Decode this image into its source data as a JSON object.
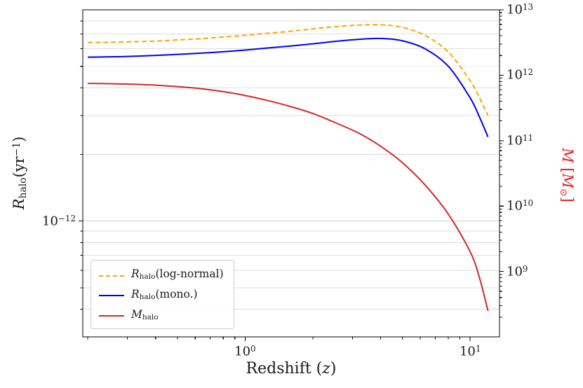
{
  "figure": {
    "background": "#ffffff",
    "text_color": "#1a1a1a"
  },
  "chart_data": {
    "type": "line",
    "title": "",
    "xlabel": "Redshift (z)",
    "xlabel_tokens": [
      {
        "t": "Redshift ("
      },
      {
        "t": "z",
        "i": true
      },
      {
        "t": ")"
      }
    ],
    "ylabel_left": "R_halo (yr^-1)",
    "ylabel_left_tokens": [
      {
        "t": "R",
        "i": true
      },
      {
        "t": "halo",
        "sub": true
      },
      {
        "t": "(yr"
      },
      {
        "t": "−1",
        "sup": true
      },
      {
        "t": ")"
      }
    ],
    "ylabel_right": "M [M_sun]",
    "ylabel_right_tokens": [
      {
        "t": "M",
        "i": true
      },
      {
        "t": " ["
      },
      {
        "t": "M",
        "i": true
      },
      {
        "t": "⊙",
        "sub": true
      },
      {
        "t": "]"
      }
    ],
    "ylabel_right_color": "#d62728",
    "x_scale": "log",
    "y_scale_left": "log",
    "y_scale_right": "log",
    "x_range": [
      0.19,
      13.5
    ],
    "y_left_range": [
      3e-13,
      9e-12
    ],
    "y_right_range": [
      100000000.0,
      10000000000000.0
    ],
    "x_tick_exponents": [
      0,
      1
    ],
    "y_left_tick_exponents": [
      -12
    ],
    "y_right_tick_exponents": [
      13,
      12,
      11,
      10,
      9
    ],
    "grid": {
      "axis": "y-left",
      "which": "both",
      "minor_color": "#dddddd",
      "major_color": "#cccccc"
    },
    "x": [
      0.2,
      0.25,
      0.3,
      0.4,
      0.5,
      0.63,
      0.8,
      1.0,
      1.26,
      1.6,
      2.0,
      2.5,
      3.2,
      4.0,
      5.0,
      6.3,
      8.0,
      10.0,
      11.0,
      12.0
    ],
    "series": [
      {
        "name": "R_halo(log-normal)",
        "label_tokens": [
          {
            "t": "R",
            "i": true
          },
          {
            "t": "halo",
            "sub": true
          },
          {
            "t": "(log-normal)"
          }
        ],
        "axis": "left",
        "color": "#ffa500",
        "dash": true,
        "width": 2,
        "values": [
          6.4e-12,
          6.42e-12,
          6.45e-12,
          6.5e-12,
          6.58e-12,
          6.66e-12,
          6.78e-12,
          6.9e-12,
          7.05e-12,
          7.2e-12,
          7.38e-12,
          7.55e-12,
          7.68e-12,
          7.7e-12,
          7.5e-12,
          6.9e-12,
          5.8e-12,
          4.3e-12,
          3.6e-12,
          3e-12
        ]
      },
      {
        "name": "R_halo(mono.)",
        "label_tokens": [
          {
            "t": "R",
            "i": true
          },
          {
            "t": "halo",
            "sub": true
          },
          {
            "t": "(mono.)"
          }
        ],
        "axis": "left",
        "color": "#0000ee",
        "dash": false,
        "width": 2,
        "values": [
          5.5e-12,
          5.52e-12,
          5.54e-12,
          5.6e-12,
          5.66e-12,
          5.73e-12,
          5.82e-12,
          5.92e-12,
          6.05e-12,
          6.18e-12,
          6.32e-12,
          6.48e-12,
          6.62e-12,
          6.68e-12,
          6.52e-12,
          6e-12,
          5e-12,
          3.6e-12,
          2.95e-12,
          2.4e-12
        ]
      },
      {
        "name": "M_halo",
        "label_tokens": [
          {
            "t": "M",
            "i": true
          },
          {
            "t": "halo",
            "sub": true
          }
        ],
        "axis": "right",
        "color": "#d62728",
        "dash": false,
        "width": 2,
        "values": [
          750000000000.0,
          742000000000.0,
          732000000000.0,
          705000000000.0,
          670000000000.0,
          625000000000.0,
          560000000000.0,
          490000000000.0,
          410000000000.0,
          330000000000.0,
          260000000000.0,
          190000000000.0,
          130000000000.0,
          82000000000.0,
          46000000000.0,
          21000000000.0,
          7500000000.0,
          2000000000.0,
          800000000.0,
          250000000.0
        ]
      }
    ],
    "legend": {
      "position": "lower-left"
    }
  }
}
